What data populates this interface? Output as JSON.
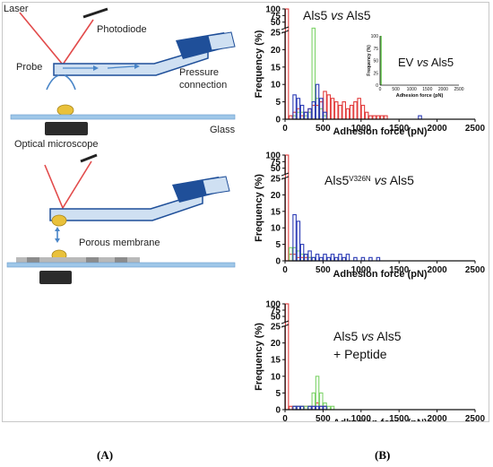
{
  "figure": {
    "panel_labels": [
      "(A)",
      "(B)"
    ],
    "schematic": {
      "labels": {
        "laser": "Laser",
        "photodiode": "Photodiode",
        "probe": "Probe",
        "pressure": "Pressure",
        "connection": "connection",
        "glass": "Glass",
        "optical_microscope": "Optical microscope",
        "porous_membrane": "Porous membrane"
      },
      "colors": {
        "laser": "#e24b4b",
        "tube_dark": "#1f4f99",
        "tube_light": "#cfe0f2",
        "glass": "#9fc7e8",
        "bead": "#e9c13b"
      }
    }
  },
  "chart_data": [
    {
      "type": "bar",
      "title": "Als5 vs Als5",
      "title_parts": {
        "pre": "Als5 ",
        "ital": "vs",
        "post": " Als5"
      },
      "xlabel": "Adhesion force (pN)",
      "ylabel": "Frequency (%)",
      "xlim": [
        0,
        2500
      ],
      "ylim": [
        0,
        100
      ],
      "yticks": [
        0,
        5,
        10,
        15,
        20,
        25,
        50,
        75,
        100
      ],
      "xticks": [
        0,
        500,
        1000,
        1500,
        2000,
        2500
      ],
      "y_axis_break": true,
      "bin_width": 50,
      "series": [
        {
          "color": "#e23c3c",
          "x": [
            0,
            50,
            100,
            150,
            200,
            250,
            300,
            350,
            400,
            450,
            500,
            550,
            600,
            650,
            700,
            750,
            800,
            850,
            900,
            950,
            1000,
            1050,
            1100,
            1150,
            1200,
            1250,
            1300
          ],
          "values": [
            100,
            1,
            2,
            3,
            1,
            2,
            3,
            4,
            4,
            5,
            8,
            7,
            6,
            5,
            4,
            5,
            3,
            4,
            5,
            6,
            4,
            2,
            1,
            1,
            1,
            1,
            1
          ]
        },
        {
          "color": "#7ed36a",
          "x": [
            100,
            150,
            200,
            250,
            300,
            350,
            400,
            450,
            500
          ],
          "values": [
            1,
            2,
            2,
            1,
            2,
            27,
            6,
            3,
            1
          ]
        },
        {
          "color": "#2b3bb5",
          "x": [
            100,
            150,
            200,
            250,
            300,
            350,
            400,
            450,
            500,
            1750
          ],
          "values": [
            7,
            6,
            4,
            2,
            3,
            5,
            10,
            6,
            2,
            1
          ]
        }
      ],
      "inset": {
        "title": "EV vs Als5",
        "title_parts": {
          "pre": "EV ",
          "ital": "vs",
          "post": " Als5"
        },
        "xlabel": "Adhesion force (pN)",
        "ylabel": "Frequency (%)",
        "xlim": [
          0,
          2500
        ],
        "ylim": [
          0,
          100
        ],
        "xticks": [
          0,
          500,
          1000,
          1500,
          2000,
          2500
        ],
        "yticks": [
          0,
          25,
          50,
          75,
          100
        ],
        "bar": {
          "x": 0,
          "value": 100,
          "color": "#7ed36a"
        }
      }
    },
    {
      "type": "bar",
      "title": "Als5V326N vs Als5",
      "title_parts": {
        "pre": "Als5",
        "sup": "V326N",
        "ital": "vs",
        "post": " Als5"
      },
      "xlabel": "Adhesion force (pN)",
      "ylabel": "Frequency (%)",
      "xlim": [
        0,
        2500
      ],
      "ylim": [
        0,
        100
      ],
      "yticks": [
        0,
        5,
        10,
        15,
        20,
        25,
        50,
        75,
        100
      ],
      "xticks": [
        0,
        500,
        1000,
        1500,
        2000,
        2500
      ],
      "y_axis_break": true,
      "bin_width": 50,
      "series": [
        {
          "color": "#e23c3c",
          "x": [
            0,
            50,
            100,
            150,
            200,
            250,
            300
          ],
          "values": [
            100,
            2,
            2,
            1,
            1,
            1,
            1
          ]
        },
        {
          "color": "#7ed36a",
          "x": [
            50,
            100,
            150,
            200,
            250,
            300,
            350
          ],
          "values": [
            4,
            4,
            3,
            2,
            2,
            1,
            1
          ]
        },
        {
          "color": "#2b3bb5",
          "x": [
            100,
            150,
            200,
            250,
            300,
            350,
            400,
            450,
            500,
            550,
            600,
            650,
            700,
            750,
            800,
            900,
            1000,
            1100,
            1200
          ],
          "values": [
            14,
            12,
            5,
            2,
            3,
            1,
            2,
            1,
            2,
            1,
            2,
            1,
            2,
            1,
            2,
            1,
            1,
            1,
            1
          ]
        }
      ]
    },
    {
      "type": "bar",
      "title": "Als5 vs Als5 + Peptide",
      "title_parts": {
        "pre": "Als5 ",
        "ital": "vs",
        "post": " Als5",
        "line2": "+ Peptide"
      },
      "xlabel": "Adhesion force (pN)",
      "ylabel": "Frequency (%)",
      "xlim": [
        0,
        2500
      ],
      "ylim": [
        0,
        100
      ],
      "yticks": [
        0,
        5,
        10,
        15,
        20,
        25,
        50,
        75,
        100
      ],
      "xticks": [
        0,
        500,
        1000,
        1500,
        2000,
        2500
      ],
      "y_axis_break": true,
      "bin_width": 50,
      "series": [
        {
          "color": "#e23c3c",
          "x": [
            0,
            50,
            100,
            150,
            200,
            250,
            300,
            350,
            400,
            450,
            500
          ],
          "values": [
            100,
            1,
            1,
            1,
            1,
            1,
            1,
            1,
            2,
            1,
            1
          ]
        },
        {
          "color": "#7ed36a",
          "x": [
            100,
            150,
            200,
            250,
            300,
            350,
            400,
            450,
            500,
            550,
            600
          ],
          "values": [
            1,
            1,
            1,
            1,
            1,
            5,
            10,
            5,
            2,
            1,
            1
          ]
        },
        {
          "color": "#2b3bb5",
          "x": [
            100,
            150,
            200,
            300,
            350,
            400,
            450,
            500
          ],
          "values": [
            1,
            1,
            1,
            1,
            1,
            1,
            1,
            1
          ]
        }
      ]
    }
  ]
}
